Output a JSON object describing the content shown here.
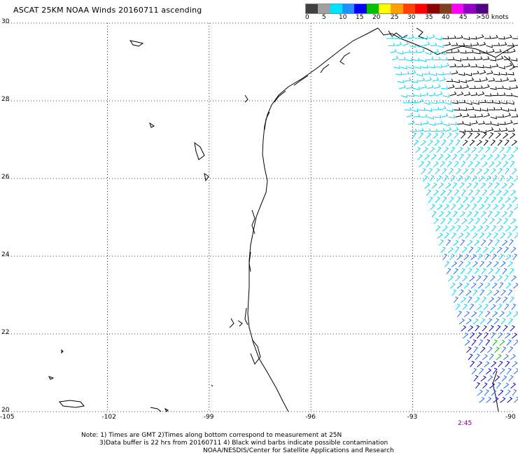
{
  "title": "ASCAT 25KM NOAA Winds 20160711 ascending",
  "colorbar": {
    "labels": [
      "0",
      "5",
      "10",
      "15",
      "20",
      "25",
      "30",
      "35",
      "40",
      "45",
      ">50 knots"
    ],
    "colors": [
      "#404040",
      "#a0a0a0",
      "#00e0ff",
      "#1e90ff",
      "#0000ff",
      "#00c000",
      "#ffff00",
      "#ffa000",
      "#ff4000",
      "#ff0000",
      "#8b0000",
      "#804020",
      "#ff00ff",
      "#9000c0",
      "#500080"
    ]
  },
  "axes": {
    "lon_labels": [
      "-105",
      "-102",
      "-99",
      "-96",
      "-93",
      "-90"
    ],
    "lat_labels": [
      "30",
      "28",
      "26",
      "24",
      "22",
      "20"
    ],
    "lon_range": [
      -105,
      -90
    ],
    "lat_range": [
      20,
      30
    ]
  },
  "time_label": "2:45",
  "notes": [
    "Note: 1) Times are GMT 2)Times along bottom correspond to measurement at 25N",
    "3)Data buffer is 22 hrs from 20160711 4) Black wind barbs indicate possible contamination",
    "NOAA/NESDIS/Center for Satellite Applications and Research"
  ],
  "barb_colors": {
    "contaminated": "#000000",
    "light": "#00d8f0",
    "medium": "#1e6cff",
    "strong": "#0000d0",
    "green": "#00c000"
  }
}
